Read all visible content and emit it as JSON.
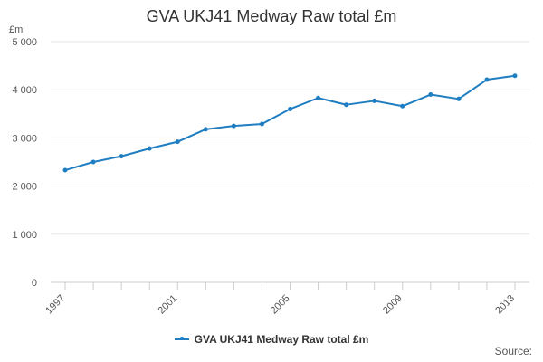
{
  "chart_data": {
    "type": "line",
    "title": "GVA UKJ41 Medway Raw total £m",
    "ylabel": "£m",
    "xlabel": "",
    "x": [
      1997,
      1998,
      1999,
      2000,
      2001,
      2002,
      2003,
      2004,
      2005,
      2006,
      2007,
      2008,
      2009,
      2010,
      2011,
      2012,
      2013
    ],
    "x_tick_labels": [
      "1997",
      "2001",
      "2005",
      "2009",
      "2013"
    ],
    "y_tick_labels": [
      "0",
      "1 000",
      "2 000",
      "3 000",
      "4 000",
      "5 000"
    ],
    "y_ticks": [
      0,
      1000,
      2000,
      3000,
      4000,
      5000
    ],
    "ylim": [
      0,
      5000
    ],
    "xlim": [
      1997,
      2013
    ],
    "grid": "horizontal",
    "legend_position": "bottom",
    "series": [
      {
        "name": "GVA UKJ41 Medway Raw total £m",
        "color": "#1f7ec1",
        "values": [
          2330,
          2500,
          2620,
          2780,
          2920,
          3180,
          3250,
          3290,
          3600,
          3830,
          3690,
          3770,
          3660,
          3900,
          3810,
          4210,
          4290
        ]
      }
    ]
  },
  "source_label": "Source:"
}
